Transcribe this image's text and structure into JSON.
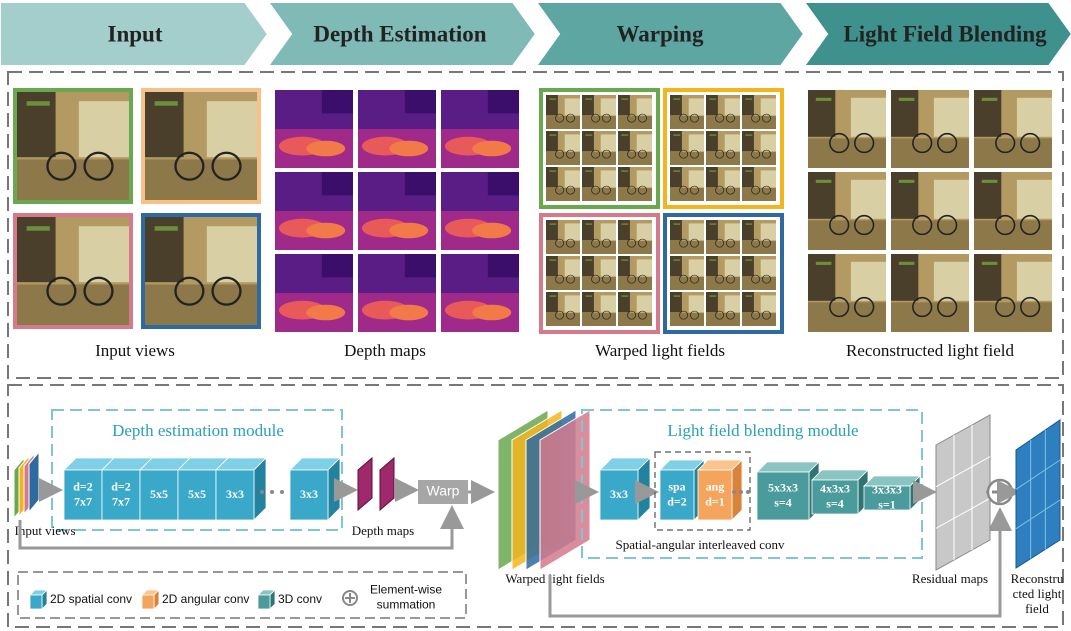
{
  "header": {
    "stages": [
      "Input",
      "Depth Estimation",
      "Warping",
      "Light Field Blending"
    ]
  },
  "panels": [
    {
      "caption": "Input views"
    },
    {
      "caption": "Depth maps"
    },
    {
      "caption": "Warped light fields"
    },
    {
      "caption": "Reconstructed light field"
    }
  ],
  "network": {
    "depth_module": "Depth estimation module",
    "blend_module": "Light field blending module",
    "input_label": "Input views",
    "depth_label": "Depth maps",
    "warp": "Warp",
    "depth_blocks": [
      [
        "d=2",
        "7x7"
      ],
      [
        "d=2",
        "7x7"
      ],
      [
        "5x5"
      ],
      [
        "5x5"
      ],
      [
        "3x3"
      ],
      [
        "3x3"
      ]
    ],
    "blend_first": [
      "3x3"
    ],
    "interleaved": [
      [
        "spa",
        "d=2"
      ],
      [
        "ang",
        "d=1"
      ]
    ],
    "interleaved_label": "Spatial-angular interleaved conv",
    "conv3d_blocks": [
      [
        "5x3x3",
        "s=4"
      ],
      [
        "4x3x3",
        "s=4"
      ],
      [
        "3x3x3",
        "s=1"
      ]
    ],
    "warped_label": "Warped light fields",
    "residual_label": "Residual maps",
    "output_label": [
      "Reconstru",
      "cted light",
      "field"
    ]
  },
  "legend": {
    "items": [
      "2D spatial conv",
      "2D angular conv",
      "3D conv"
    ],
    "sum": [
      "Element-wise",
      "summation"
    ]
  }
}
